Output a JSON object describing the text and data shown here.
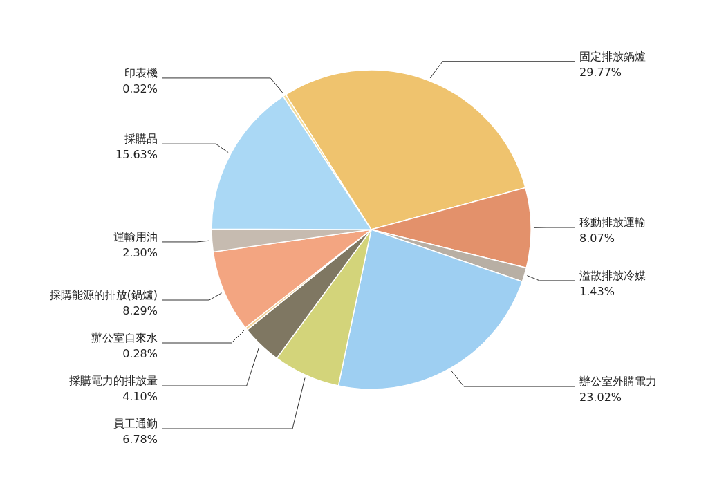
{
  "chart_data": {
    "type": "pie",
    "categories": [
      "印表機",
      "固定排放鍋爐",
      "移動排放運輸",
      "溢散排放冷媒",
      "辦公室外購電力",
      "員工通勤",
      "採購電力的排放量",
      "辦公室自來水",
      "採購能源的排放(鍋爐)",
      "運輸用油",
      "採購品"
    ],
    "values": [
      0.32,
      29.77,
      8.07,
      1.43,
      23.02,
      6.78,
      4.1,
      0.28,
      8.29,
      2.3,
      15.63
    ],
    "value_labels": [
      "0.32%",
      "29.77%",
      "8.07%",
      "1.43%",
      "23.02%",
      "6.78%",
      "4.10%",
      "0.28%",
      "8.29%",
      "2.30%",
      "15.63%"
    ],
    "colors": [
      "#f3dc9c",
      "#efc36e",
      "#e3916b",
      "#b8afa4",
      "#9ecff2",
      "#d3d47a",
      "#7f7762",
      "#f1d29a",
      "#f3a581",
      "#c6bbb0",
      "#aad8f5"
    ]
  }
}
